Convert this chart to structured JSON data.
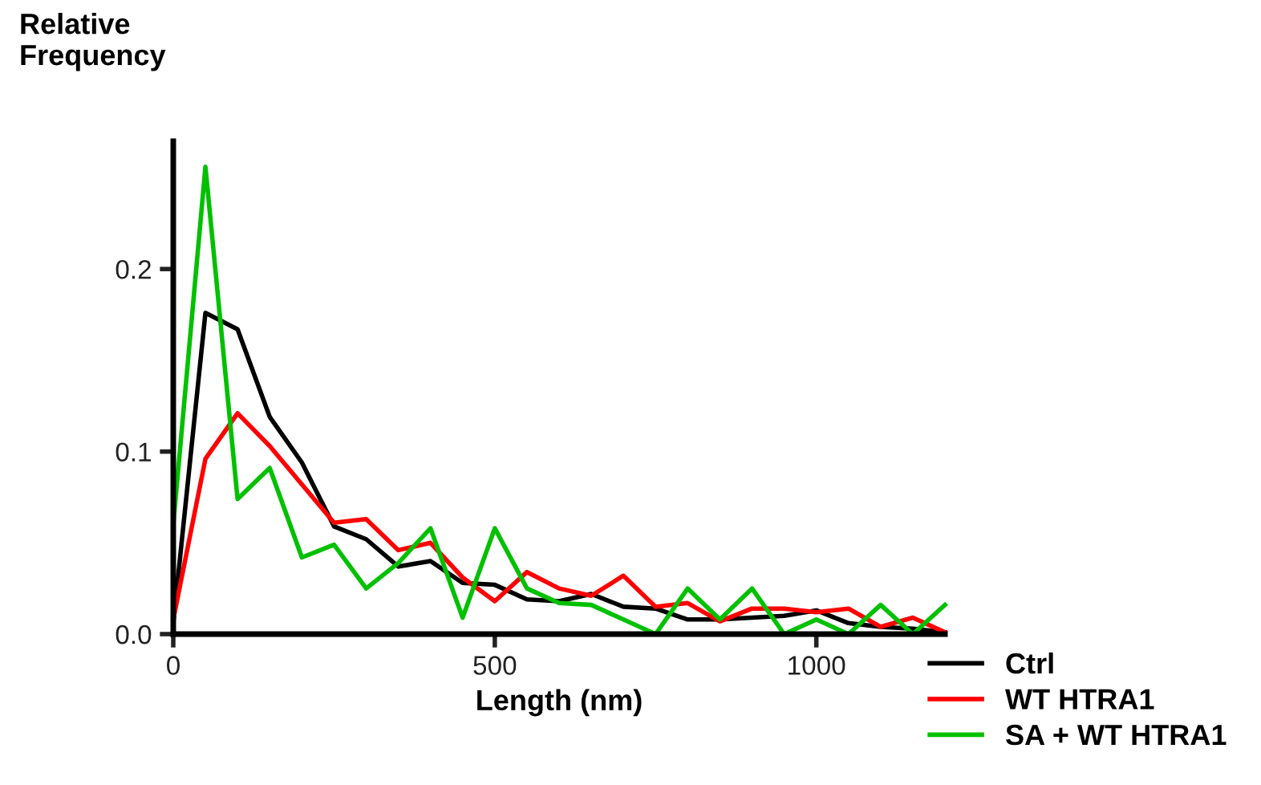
{
  "chart_data": {
    "type": "line",
    "xlabel": "Length (nm)",
    "ylabel": "Relative\nFrequency",
    "x": [
      0,
      50,
      100,
      150,
      200,
      250,
      300,
      350,
      400,
      450,
      500,
      550,
      600,
      650,
      700,
      750,
      800,
      850,
      900,
      950,
      1000,
      1050,
      1100,
      1150,
      1200
    ],
    "xlim": [
      0,
      1200
    ],
    "xticks": [
      0,
      500,
      1000
    ],
    "ylim": [
      0,
      0.27
    ],
    "yticks": [
      {
        "value": 0,
        "label": "0.0"
      },
      {
        "value": 0.1,
        "label": "0.1"
      },
      {
        "value": 0.2,
        "label": "0.2"
      }
    ],
    "grid": false,
    "legend": "bottom right",
    "marker": "none",
    "line_style": "solid",
    "series": [
      {
        "name": "Ctrl",
        "color": "#000000",
        "values": [
          0.006,
          0.176,
          0.167,
          0.119,
          0.094,
          0.059,
          0.052,
          0.037,
          0.04,
          0.028,
          0.027,
          0.019,
          0.018,
          0.022,
          0.015,
          0.014,
          0.008,
          0.008,
          0.009,
          0.01,
          0.013,
          0.006,
          0.004,
          0.003,
          0.001
        ]
      },
      {
        "name": "WT HTRA1",
        "color": "#ff0000",
        "values": [
          0.008,
          0.096,
          0.121,
          0.103,
          0.082,
          0.061,
          0.063,
          0.046,
          0.05,
          0.031,
          0.018,
          0.034,
          0.025,
          0.021,
          0.032,
          0.015,
          0.017,
          0.007,
          0.014,
          0.014,
          0.012,
          0.014,
          0.004,
          0.009,
          0.001
        ]
      },
      {
        "name": "SA + WT HTRA1",
        "color": "#00c000",
        "values": [
          0.06,
          0.256,
          0.074,
          0.091,
          0.042,
          0.049,
          0.025,
          0.039,
          0.058,
          0.009,
          0.058,
          0.025,
          0.017,
          0.016,
          0.008,
          0.0,
          0.025,
          0.008,
          0.025,
          0.0,
          0.008,
          0.0,
          0.016,
          0.0,
          0.016
        ]
      }
    ]
  }
}
